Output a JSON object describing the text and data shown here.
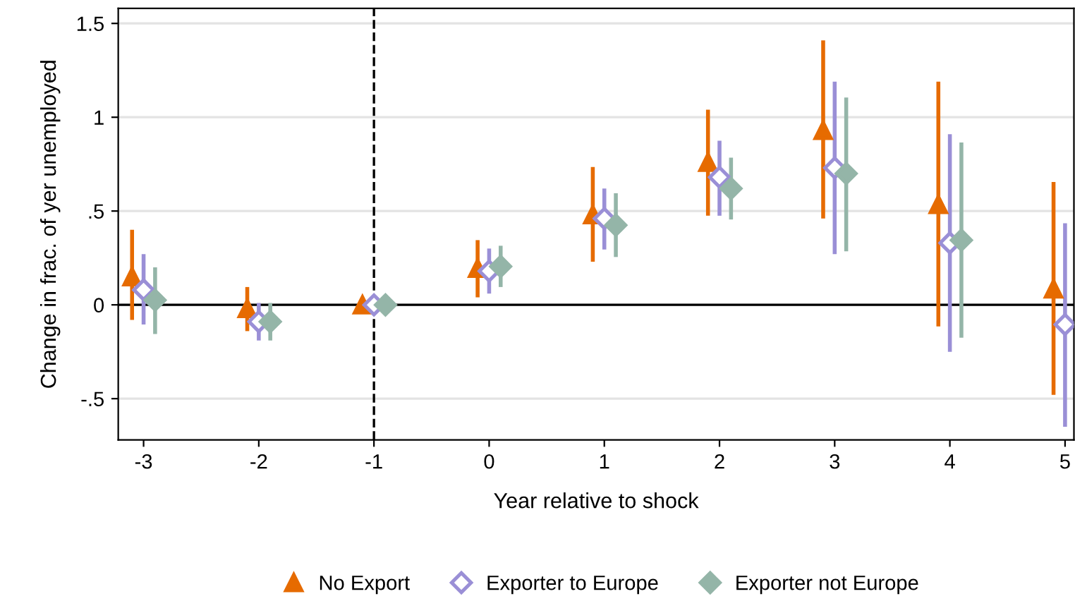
{
  "chart_data": {
    "type": "scatter",
    "xlabel": "Year relative to shock",
    "ylabel": "Change in frac. of yer unemployed",
    "xlim": [
      -3.22,
      5.077
    ],
    "ylim": [
      -0.72,
      1.58
    ],
    "xticks": [
      -3,
      -2,
      -1,
      0,
      1,
      2,
      3,
      4,
      5
    ],
    "yticks": [
      {
        "value": -0.5,
        "label": "-.5"
      },
      0,
      {
        "value": 0.5,
        "label": ".5"
      },
      1,
      1.5
    ],
    "grid": "y",
    "legend": "bottom",
    "ref_lines": [
      {
        "axis": "x",
        "value": -1,
        "color": "#000000",
        "line_style": "dashed"
      },
      {
        "axis": "y",
        "value": 0,
        "color": "#000000",
        "line_style": "solid"
      }
    ],
    "series": [
      {
        "name": "No Export",
        "color": "#e66b00",
        "marker": "triangle",
        "x": [
          -3.1,
          -2.1,
          -1.1,
          -0.1,
          0.9,
          1.9,
          2.9,
          3.9,
          4.9
        ],
        "values": [
          0.15,
          -0.02,
          0,
          0.195,
          0.48,
          0.76,
          0.93,
          0.535,
          0.085
        ],
        "errors": [
          [
            -0.08,
            0.4
          ],
          [
            -0.14,
            0.095
          ],
          null,
          [
            0.04,
            0.345
          ],
          [
            0.23,
            0.735
          ],
          [
            0.475,
            1.04
          ],
          [
            0.46,
            1.41
          ],
          [
            -0.115,
            1.19
          ],
          [
            -0.48,
            0.655
          ]
        ]
      },
      {
        "name": "Exporter to Europe",
        "color": "#9a8fd6",
        "marker": "diamond",
        "x": [
          -3,
          -2,
          -1,
          0,
          1,
          2,
          3,
          4,
          5
        ],
        "values": [
          0.08,
          -0.09,
          0,
          0.18,
          0.46,
          0.68,
          0.73,
          0.33,
          -0.105
        ],
        "errors": [
          [
            -0.105,
            0.27
          ],
          [
            -0.19,
            0.01
          ],
          null,
          [
            0.06,
            0.3
          ],
          [
            0.295,
            0.62
          ],
          [
            0.475,
            0.875
          ],
          [
            0.27,
            1.19
          ],
          [
            -0.25,
            0.91
          ],
          [
            -0.65,
            0.435
          ]
        ]
      },
      {
        "name": "Exporter not Europe",
        "color": "#94b5a8",
        "marker": "diamond",
        "x": [
          -2.9,
          -1.9,
          -0.9,
          0.1,
          1.1,
          2.1,
          3.1,
          4.1
        ],
        "values": [
          0.025,
          -0.09,
          0,
          0.205,
          0.425,
          0.62,
          0.7,
          0.345
        ],
        "errors": [
          [
            -0.155,
            0.2
          ],
          [
            -0.19,
            0.01
          ],
          null,
          [
            0.095,
            0.315
          ],
          [
            0.255,
            0.595
          ],
          [
            0.455,
            0.785
          ],
          [
            0.285,
            1.105
          ],
          [
            -0.175,
            0.865
          ]
        ]
      }
    ]
  }
}
